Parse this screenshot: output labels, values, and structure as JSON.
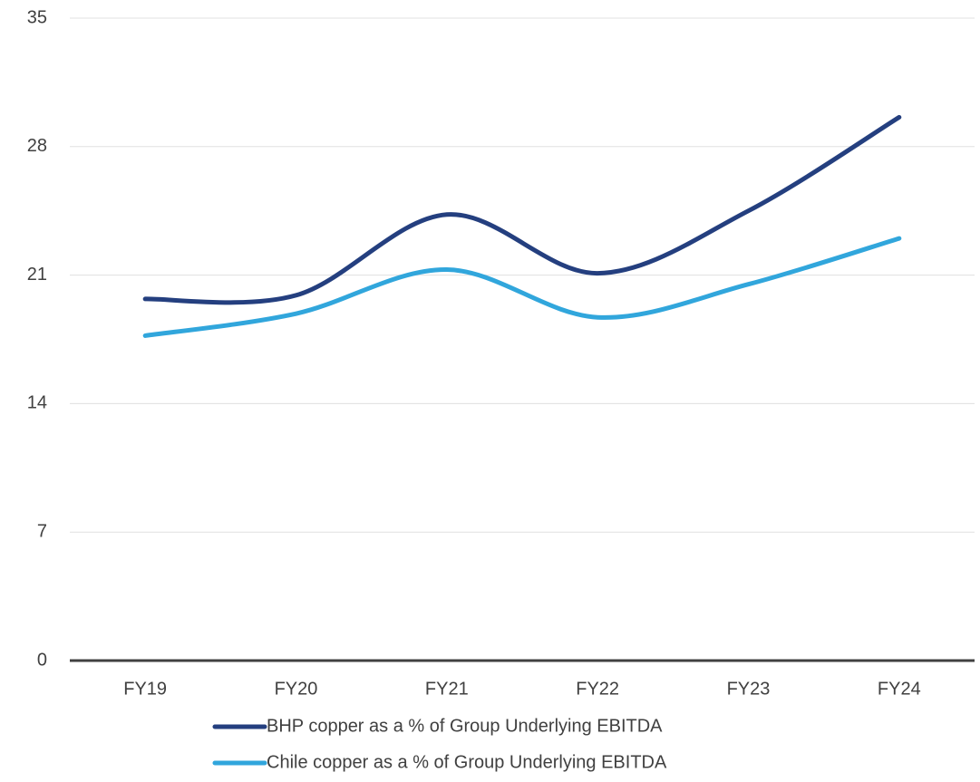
{
  "chart_data": {
    "type": "line",
    "categories": [
      "FY19",
      "FY20",
      "FY21",
      "FY22",
      "FY23",
      "FY24"
    ],
    "series": [
      {
        "name": "BHP copper as a % of Group Underlying EBITDA",
        "color": "#243f7f",
        "values": [
          19.7,
          19.9,
          24.3,
          21.1,
          24.5,
          29.6
        ]
      },
      {
        "name": "Chile copper as a % of Group Underlying EBITDA",
        "color": "#31a6dc",
        "values": [
          17.7,
          18.9,
          21.3,
          18.7,
          20.5,
          23.0
        ]
      }
    ],
    "ylim": [
      0,
      35
    ],
    "yticks": [
      0,
      7,
      14,
      21,
      28,
      35
    ],
    "grid": true,
    "smooth": true,
    "legend": "bottom"
  }
}
